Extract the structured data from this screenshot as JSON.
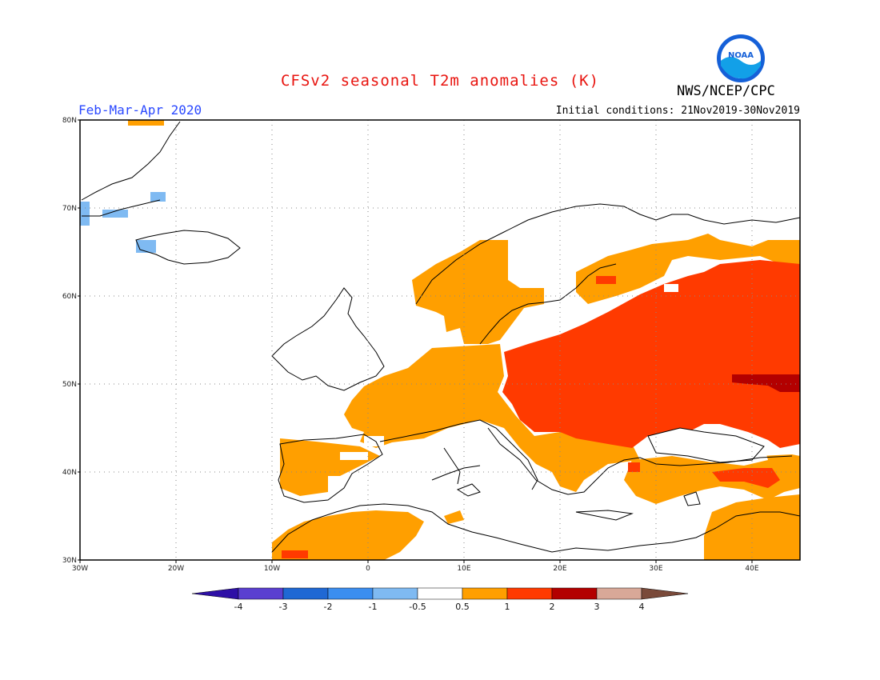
{
  "header": {
    "title": "CFSv2 seasonal T2m anomalies (K)",
    "period": "Feb-Mar-Apr 2020",
    "initial_conditions": "Initial conditions: 21Nov2019-30Nov2019",
    "agency": "NWS/NCEP/CPC",
    "logo_text": "NOAA"
  },
  "map": {
    "lon_range": [
      -30,
      45
    ],
    "lat_range": [
      30,
      80
    ],
    "x_ticks": [
      "30W",
      "20W",
      "10W",
      "0",
      "10E",
      "20E",
      "30E",
      "40E"
    ],
    "y_ticks": [
      "30N",
      "40N",
      "50N",
      "60N",
      "70N",
      "80N"
    ],
    "grid": "dotted"
  },
  "colorbar": {
    "labels": [
      "-4",
      "-3",
      "-2",
      "-1",
      "-0.5",
      "0.5",
      "1",
      "2",
      "3",
      "4"
    ],
    "colors": [
      "#2e10a6",
      "#5a3fd0",
      "#1f68d4",
      "#3b8ef0",
      "#7fbaf2",
      "#ffffff",
      "#ff9f00",
      "#ff3a00",
      "#b30000",
      "#d8a898",
      "#7a4a3a"
    ]
  }
}
